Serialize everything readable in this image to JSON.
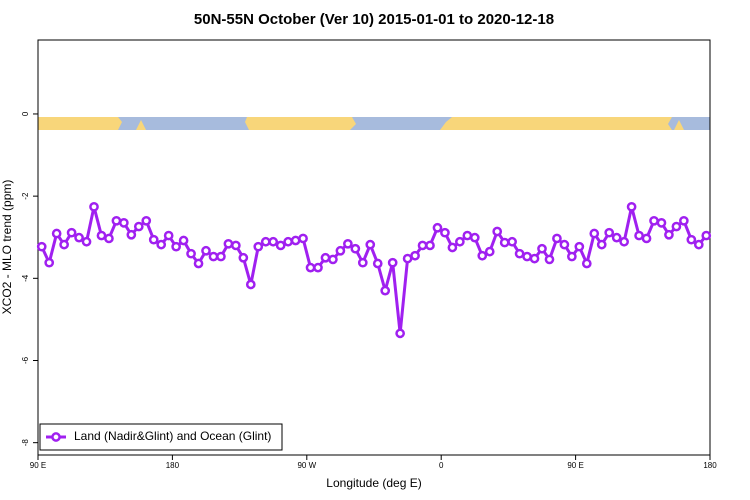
{
  "chart_data": {
    "type": "line",
    "title": "50N-55N October (Ver 10)   2015-01-01 to 2020-12-18",
    "xlabel": "Longitude (deg E)",
    "ylabel": "XCO2 - MLO trend (ppm)",
    "xlim": [
      90,
      540
    ],
    "xticks": [
      {
        "value": 90,
        "label": "90 E"
      },
      180,
      {
        "value": 270,
        "label": "90 W"
      },
      {
        "value": 360,
        "label": "0"
      },
      {
        "value": 450,
        "label": "90 E"
      },
      {
        "value": 540,
        "label": "180"
      }
    ],
    "ylim": [
      -8.3,
      1.8
    ],
    "yticks": [
      0,
      -2,
      -4,
      -6,
      -8
    ],
    "legend": "lower left",
    "x": [
      92.5,
      97.5,
      102.5,
      107.5,
      112.5,
      117.5,
      122.5,
      127.5,
      132.5,
      137.5,
      142.5,
      147.5,
      152.5,
      157.5,
      162.5,
      167.5,
      172.5,
      177.5,
      182.5,
      187.5,
      192.5,
      197.5,
      202.5,
      207.5,
      212.5,
      217.5,
      222.5,
      227.5,
      232.5,
      237.5,
      242.5,
      247.5,
      252.5,
      257.5,
      262.5,
      267.5,
      272.5,
      277.5,
      282.5,
      287.5,
      292.5,
      297.5,
      302.5,
      307.5,
      312.5,
      317.5,
      322.5,
      327.5,
      332.5,
      337.5,
      342.5,
      347.5,
      352.5,
      357.5,
      362.5,
      367.5,
      372.5,
      377.5,
      382.5,
      387.5,
      392.5,
      397.5,
      402.5,
      407.5,
      412.5,
      417.5,
      422.5,
      427.5,
      432.5,
      437.5,
      442.5,
      447.5,
      452.5,
      457.5,
      462.5,
      467.5,
      472.5,
      477.5,
      482.5,
      487.5,
      492.5,
      497.5,
      502.5,
      507.5,
      512.5,
      517.5,
      522.5,
      527.5,
      532.5,
      537.5
    ],
    "series": [
      {
        "name": "Land (Nadir&Glint) and Ocean (Glint)",
        "color": "#a020f0",
        "values": [
          -3.23,
          -3.62,
          -2.91,
          -3.18,
          -2.89,
          -3.01,
          -3.11,
          -2.26,
          -2.96,
          -3.03,
          -2.6,
          -2.65,
          -2.94,
          -2.74,
          -2.6,
          -3.06,
          -3.18,
          -2.96,
          -3.23,
          -3.08,
          -3.4,
          -3.64,
          -3.33,
          -3.47,
          -3.47,
          -3.16,
          -3.2,
          -3.5,
          -4.15,
          -3.23,
          -3.11,
          -3.11,
          -3.2,
          -3.11,
          -3.08,
          -3.03,
          -3.74,
          -3.74,
          -3.5,
          -3.54,
          -3.33,
          -3.16,
          -3.28,
          -3.62,
          -3.18,
          -3.64,
          -4.3,
          -3.62,
          -5.34,
          -3.52,
          -3.45,
          -3.2,
          -3.2,
          -2.77,
          -2.89,
          -3.25,
          -3.11,
          -2.96,
          -3.01,
          -3.45,
          -3.35,
          -2.86,
          -3.13,
          -3.11,
          -3.4,
          -3.47,
          -3.52,
          -3.28,
          -3.54,
          -3.03,
          -3.18,
          -3.47,
          -3.23,
          -3.64,
          -2.91,
          -3.18,
          -2.89,
          -3.01,
          -3.11,
          -2.26,
          -2.96,
          -3.03,
          -2.6,
          -2.65,
          -2.94,
          -2.74,
          -2.6,
          -3.06,
          -3.18,
          -2.96
        ]
      }
    ]
  }
}
